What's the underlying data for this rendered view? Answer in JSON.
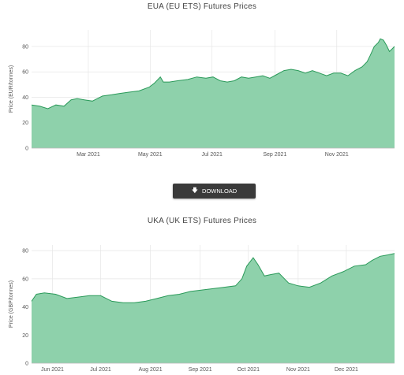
{
  "download": {
    "label": "DOWNLOAD",
    "icon": "download-arrow-icon"
  },
  "colors": {
    "fill": "#8ed1ab",
    "line": "#2b9a5a",
    "grid": "#e6e6e6"
  },
  "chart_data": [
    {
      "type": "area",
      "title": "EUA (EU ETS) Futures Prices",
      "ylabel": "Price (EUR/tonnes)",
      "xlabel": "",
      "ylim": [
        0,
        93
      ],
      "yticks": [
        0,
        20,
        40,
        60,
        80
      ],
      "xlim": [
        "2021-01-04",
        "2021-12-28"
      ],
      "xticks": [
        {
          "date": "2021-03-01",
          "label": "Mar 2021"
        },
        {
          "date": "2021-05-01",
          "label": "May 2021"
        },
        {
          "date": "2021-07-01",
          "label": "Jul 2021"
        },
        {
          "date": "2021-09-01",
          "label": "Sep 2021"
        },
        {
          "date": "2021-11-01",
          "label": "Nov 2021"
        }
      ],
      "grid": true,
      "series": [
        {
          "x": [
            "2021-01-04",
            "2021-01-12",
            "2021-01-20",
            "2021-01-28",
            "2021-02-05",
            "2021-02-12",
            "2021-02-18",
            "2021-02-25",
            "2021-03-05",
            "2021-03-15",
            "2021-03-24",
            "2021-04-01",
            "2021-04-10",
            "2021-04-20",
            "2021-04-30",
            "2021-05-05",
            "2021-05-11",
            "2021-05-14",
            "2021-05-20",
            "2021-05-28",
            "2021-06-07",
            "2021-06-16",
            "2021-06-25",
            "2021-07-02",
            "2021-07-09",
            "2021-07-16",
            "2021-07-23",
            "2021-07-30",
            "2021-08-06",
            "2021-08-13",
            "2021-08-20",
            "2021-08-27",
            "2021-09-03",
            "2021-09-10",
            "2021-09-17",
            "2021-09-24",
            "2021-10-01",
            "2021-10-08",
            "2021-10-15",
            "2021-10-22",
            "2021-10-29",
            "2021-11-05",
            "2021-11-12",
            "2021-11-19",
            "2021-11-26",
            "2021-12-01",
            "2021-12-04",
            "2021-12-08",
            "2021-12-12",
            "2021-12-14",
            "2021-12-17",
            "2021-12-20",
            "2021-12-23",
            "2021-12-28"
          ],
          "values": [
            34,
            33,
            31,
            34,
            33,
            38,
            39,
            38,
            37,
            41,
            42,
            43,
            44,
            45,
            48,
            51,
            56,
            52,
            52,
            53,
            54,
            56,
            55,
            56,
            53,
            52,
            53,
            56,
            55,
            56,
            57,
            55,
            58,
            61,
            62,
            61,
            59,
            61,
            59,
            57,
            59,
            59,
            57,
            61,
            64,
            68,
            73,
            80,
            83,
            86,
            85,
            81,
            76,
            80
          ]
        }
      ]
    },
    {
      "type": "area",
      "title": "UKA (UK ETS) Futures Prices",
      "ylabel": "Price (GBP/tonnes)",
      "xlabel": "",
      "ylim": [
        0,
        84
      ],
      "yticks": [
        0,
        20,
        40,
        60,
        80
      ],
      "xlim": [
        "2021-05-19",
        "2021-12-31"
      ],
      "xticks": [
        {
          "date": "2021-06-01",
          "label": "Jun 2021"
        },
        {
          "date": "2021-07-01",
          "label": "Jul 2021"
        },
        {
          "date": "2021-08-01",
          "label": "Aug 2021"
        },
        {
          "date": "2021-09-01",
          "label": "Sep 2021"
        },
        {
          "date": "2021-10-01",
          "label": "Oct 2021"
        },
        {
          "date": "2021-11-01",
          "label": "Nov 2021"
        },
        {
          "date": "2021-12-01",
          "label": "Dec 2021"
        }
      ],
      "grid": true,
      "series": [
        {
          "x": [
            "2021-05-19",
            "2021-05-22",
            "2021-05-27",
            "2021-06-03",
            "2021-06-10",
            "2021-06-17",
            "2021-06-24",
            "2021-07-01",
            "2021-07-08",
            "2021-07-15",
            "2021-07-22",
            "2021-07-29",
            "2021-08-05",
            "2021-08-12",
            "2021-08-19",
            "2021-08-26",
            "2021-09-02",
            "2021-09-09",
            "2021-09-16",
            "2021-09-23",
            "2021-09-27",
            "2021-09-30",
            "2021-10-04",
            "2021-10-07",
            "2021-10-11",
            "2021-10-15",
            "2021-10-20",
            "2021-10-26",
            "2021-11-01",
            "2021-11-08",
            "2021-11-15",
            "2021-11-22",
            "2021-11-29",
            "2021-12-06",
            "2021-12-13",
            "2021-12-17",
            "2021-12-22",
            "2021-12-27",
            "2021-12-31"
          ],
          "values": [
            44,
            49,
            50,
            49,
            46,
            47,
            48,
            48,
            44,
            43,
            43,
            44,
            46,
            48,
            49,
            51,
            52,
            53,
            54,
            55,
            60,
            69,
            75,
            70,
            62,
            63,
            64,
            57,
            55,
            54,
            57,
            62,
            65,
            69,
            70,
            73,
            76,
            77,
            78
          ]
        }
      ]
    }
  ]
}
